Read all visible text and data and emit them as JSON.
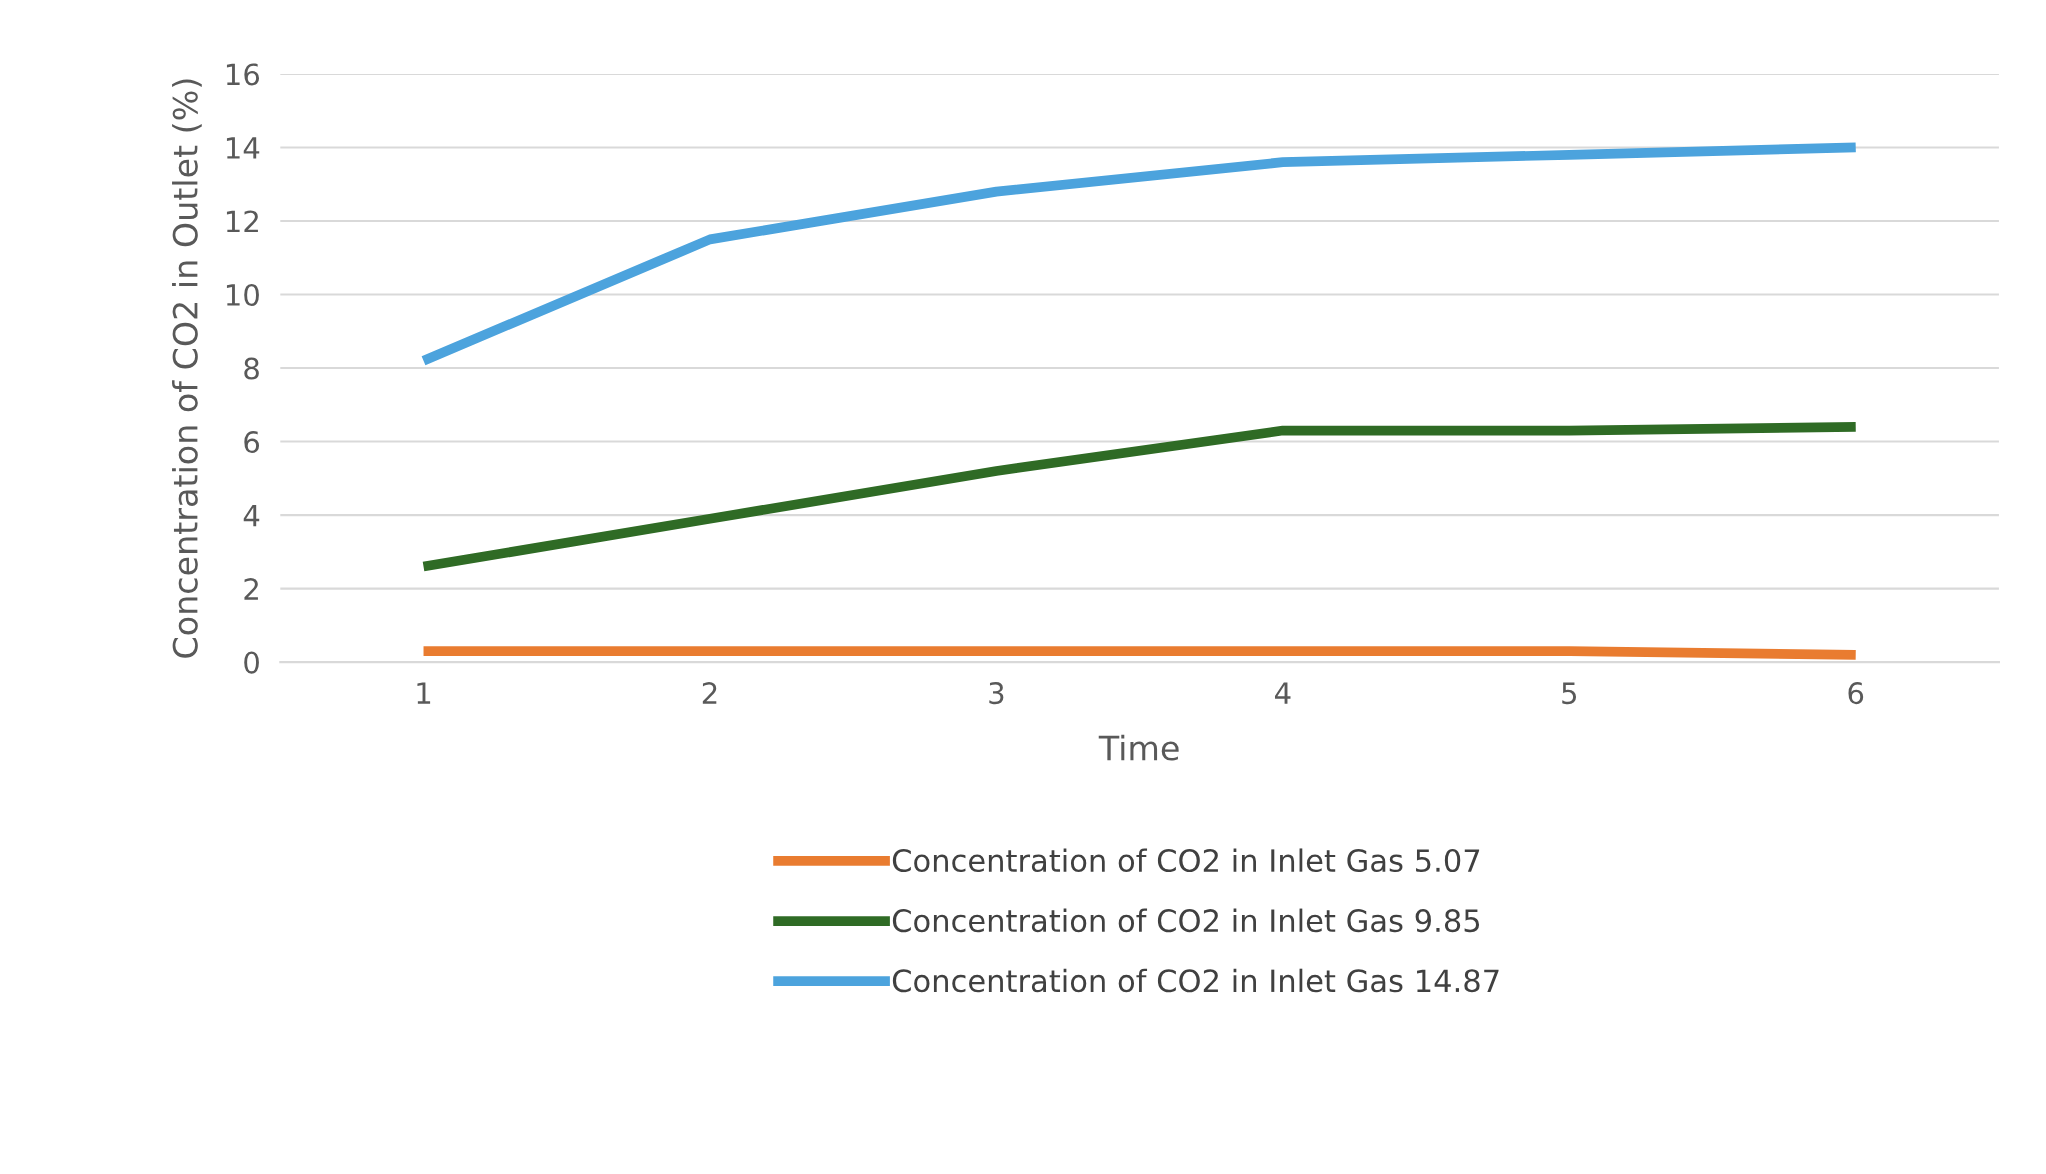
{
  "chart_data": {
    "type": "line",
    "xlabel": "Time",
    "ylabel": "Concentration of CO2 in Outlet (%)",
    "x": [
      1,
      2,
      3,
      4,
      5,
      6
    ],
    "series": [
      {
        "name": "Concentration of CO2 in Inlet Gas 5.07",
        "color": "#e97c30",
        "values": [
          0.3,
          0.3,
          0.3,
          0.3,
          0.3,
          0.2
        ]
      },
      {
        "name": "Concentration of CO2 in Inlet Gas 9.85",
        "color": "#2f6b25",
        "values": [
          2.6,
          3.9,
          5.2,
          6.3,
          6.3,
          6.4
        ]
      },
      {
        "name": "Concentration of CO2 in Inlet Gas 14.87",
        "color": "#4ca3dd",
        "values": [
          8.2,
          11.5,
          12.8,
          13.6,
          13.8,
          14.0
        ]
      }
    ],
    "xlim": [
      0.5,
      6.5
    ],
    "xticks": [
      1,
      2,
      3,
      4,
      5,
      6
    ],
    "ylim": [
      0,
      16
    ],
    "yticks": [
      0,
      2,
      4,
      6,
      8,
      10,
      12,
      14,
      16
    ],
    "grid": "y",
    "legend": "bottom",
    "marker": "none",
    "line_style": "solid"
  }
}
